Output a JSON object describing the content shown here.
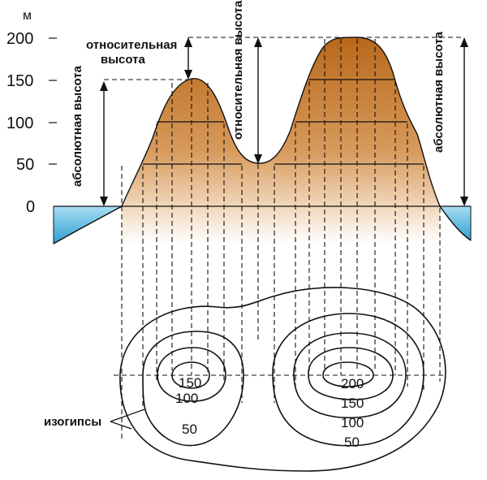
{
  "axis": {
    "unit": "м",
    "ticks": [
      "200",
      "150",
      "100",
      "50",
      "0"
    ]
  },
  "labels": {
    "relative_height_left_line1": "относительная",
    "relative_height_left_line2": "высота",
    "absolute_height_left": "абсолютная высота",
    "relative_height_mid": "относительная высота",
    "absolute_height_right": "абсолютная высота",
    "isohypses": "изогипсы"
  },
  "contours": {
    "left_hill": [
      "150",
      "100",
      "50"
    ],
    "right_hill": [
      "200",
      "150",
      "100",
      "50"
    ]
  },
  "colors": {
    "terrain_top": "#b8681a",
    "terrain_bottom": "#ffffff",
    "water_top": "#9ad9ef",
    "water_bottom": "#2f9fd3"
  }
}
